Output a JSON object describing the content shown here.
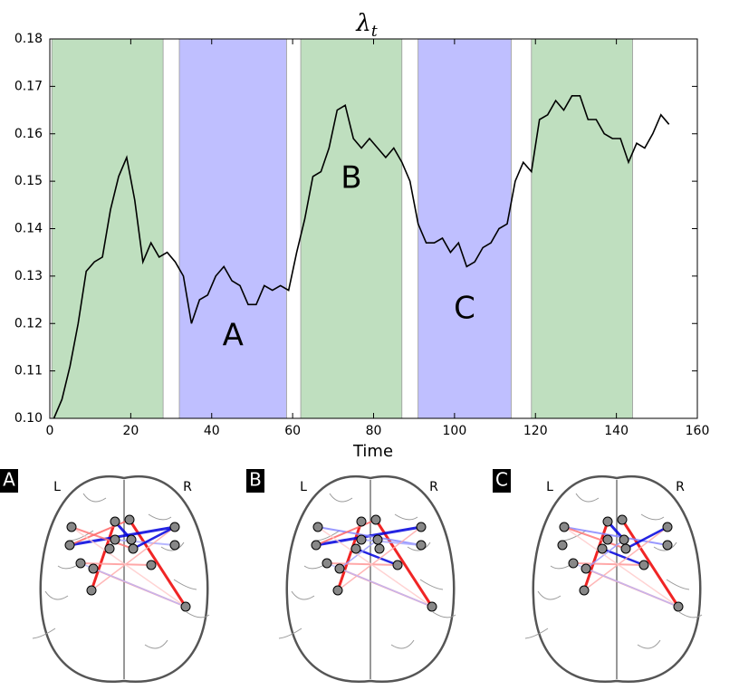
{
  "chart_data": {
    "type": "line",
    "title": {
      "symbol": "λ",
      "subscript": "t"
    },
    "xlabel": "Time",
    "xlim": [
      0,
      160
    ],
    "ylim": [
      0.1,
      0.18
    ],
    "xticks": [
      0,
      20,
      40,
      60,
      80,
      100,
      120,
      140,
      160
    ],
    "yticks": [
      {
        "value": 0.1,
        "label": "0.10"
      },
      0.11,
      0.12,
      0.13,
      0.14,
      0.15,
      0.16,
      0.17,
      0.18
    ],
    "regions": [
      {
        "start": 0.5,
        "end": 28,
        "color": "#bfdfbf",
        "label": null
      },
      {
        "start": 32,
        "end": 58.5,
        "color": "#bfbfff",
        "label": "A"
      },
      {
        "start": 62,
        "end": 87,
        "color": "#bfdfbf",
        "label": "B"
      },
      {
        "start": 91,
        "end": 114,
        "color": "#bfbfff",
        "label": "C"
      },
      {
        "start": 119,
        "end": 144,
        "color": "#bfdfbf",
        "label": null
      }
    ],
    "series": [
      {
        "name": null,
        "color": "#000000",
        "x": [
          1,
          3,
          5,
          7,
          9,
          11,
          13,
          15,
          17,
          19,
          21,
          23,
          25,
          27,
          29,
          31,
          33,
          35,
          37,
          39,
          41,
          43,
          45,
          47,
          49,
          51,
          53,
          55,
          57,
          59,
          61,
          63,
          65,
          67,
          69,
          71,
          73,
          75,
          77,
          79,
          81,
          83,
          85,
          87,
          89,
          91,
          93,
          95,
          97,
          99,
          101,
          103,
          105,
          107,
          109,
          111,
          113,
          115,
          117,
          119,
          121,
          123,
          125,
          127,
          129,
          131,
          133,
          135,
          137,
          139,
          141,
          143,
          145,
          147,
          149,
          151,
          153
        ],
        "values": [
          0.1,
          0.104,
          0.111,
          0.12,
          0.131,
          0.133,
          0.134,
          0.144,
          0.151,
          0.155,
          0.146,
          0.133,
          0.137,
          0.134,
          0.135,
          0.133,
          0.13,
          0.12,
          0.125,
          0.126,
          0.13,
          0.132,
          0.129,
          0.128,
          0.124,
          0.124,
          0.128,
          0.127,
          0.128,
          0.127,
          0.135,
          0.142,
          0.151,
          0.152,
          0.157,
          0.165,
          0.166,
          0.159,
          0.157,
          0.159,
          0.157,
          0.155,
          0.157,
          0.154,
          0.15,
          0.141,
          0.137,
          0.137,
          0.138,
          0.135,
          0.137,
          0.132,
          0.133,
          0.136,
          0.137,
          0.14,
          0.141,
          0.15,
          0.154,
          0.152,
          0.163,
          0.164,
          0.167,
          0.165,
          0.168,
          0.168,
          0.163,
          0.163,
          0.16,
          0.159,
          0.159,
          0.154,
          0.158,
          0.157,
          0.16,
          0.164,
          0.162
        ]
      }
    ]
  },
  "panels": [
    {
      "label": "A",
      "left": "L",
      "right": "R"
    },
    {
      "label": "B",
      "left": "L",
      "right": "R"
    },
    {
      "label": "C",
      "left": "L",
      "right": "R"
    }
  ]
}
